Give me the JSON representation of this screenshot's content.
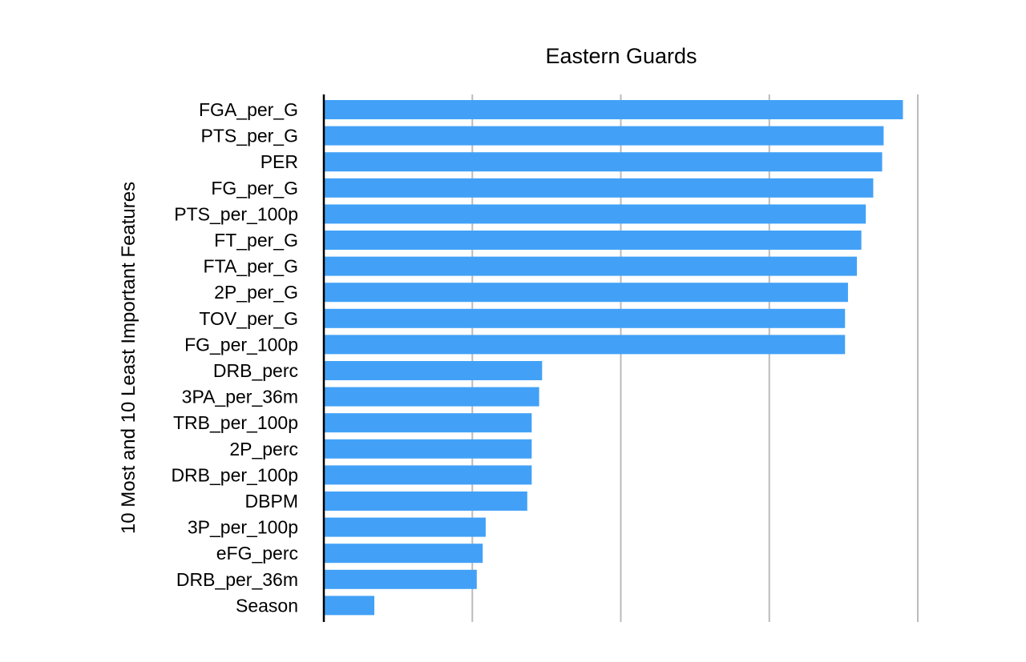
{
  "chart_data": {
    "type": "bar",
    "orientation": "horizontal",
    "title": "Eastern Guards",
    "xlabel": "",
    "ylabel": "10 Most and 10 Least Important Features",
    "categories": [
      "FGA_per_G",
      "PTS_per_G",
      "PER",
      "FG_per_G",
      "PTS_per_100p",
      "FT_per_G",
      "FTA_per_G",
      "2P_per_G",
      "TOV_per_G",
      "FG_per_100p",
      "DRB_perc",
      "3PA_per_36m",
      "TRB_per_100p",
      "2P_perc",
      "DRB_per_100p",
      "DBPM",
      "3P_per_100p",
      "eFG_perc",
      "DRB_per_36m",
      "Season"
    ],
    "values": [
      3.9,
      3.77,
      3.76,
      3.7,
      3.65,
      3.62,
      3.59,
      3.53,
      3.51,
      3.51,
      1.47,
      1.45,
      1.4,
      1.4,
      1.4,
      1.37,
      1.09,
      1.07,
      1.03,
      0.34
    ],
    "xlim": [
      0,
      4
    ],
    "x_gridlines": [
      1,
      2,
      3,
      4
    ],
    "tick_labels_shown": false,
    "grid": true,
    "legend": "none",
    "bar_color": "#42A1F7",
    "grid_color": "#BBBBBB",
    "axis_color": "#000000"
  }
}
